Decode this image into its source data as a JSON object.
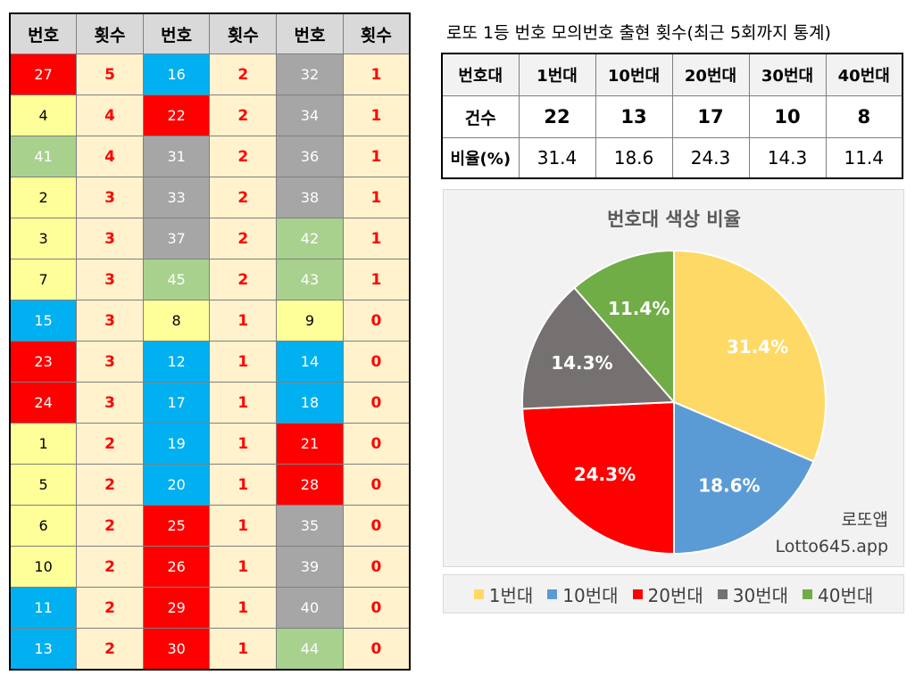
{
  "freq_table": {
    "headers": [
      "번호",
      "횟수",
      "번호",
      "횟수",
      "번호",
      "횟수"
    ],
    "rows": [
      [
        {
          "n": "27",
          "c": "5",
          "k": "r"
        },
        {
          "n": "16",
          "c": "2",
          "k": "b"
        },
        {
          "n": "32",
          "c": "1",
          "k": "g"
        }
      ],
      [
        {
          "n": "4",
          "c": "4",
          "k": "y"
        },
        {
          "n": "22",
          "c": "2",
          "k": "r"
        },
        {
          "n": "34",
          "c": "1",
          "k": "g"
        }
      ],
      [
        {
          "n": "41",
          "c": "4",
          "k": "n"
        },
        {
          "n": "31",
          "c": "2",
          "k": "g"
        },
        {
          "n": "36",
          "c": "1",
          "k": "g"
        }
      ],
      [
        {
          "n": "2",
          "c": "3",
          "k": "y"
        },
        {
          "n": "33",
          "c": "2",
          "k": "g"
        },
        {
          "n": "38",
          "c": "1",
          "k": "g"
        }
      ],
      [
        {
          "n": "3",
          "c": "3",
          "k": "y"
        },
        {
          "n": "37",
          "c": "2",
          "k": "g"
        },
        {
          "n": "42",
          "c": "1",
          "k": "n"
        }
      ],
      [
        {
          "n": "7",
          "c": "3",
          "k": "y"
        },
        {
          "n": "45",
          "c": "2",
          "k": "n"
        },
        {
          "n": "43",
          "c": "1",
          "k": "n"
        }
      ],
      [
        {
          "n": "15",
          "c": "3",
          "k": "b"
        },
        {
          "n": "8",
          "c": "1",
          "k": "y"
        },
        {
          "n": "9",
          "c": "0",
          "k": "y"
        }
      ],
      [
        {
          "n": "23",
          "c": "3",
          "k": "r"
        },
        {
          "n": "12",
          "c": "1",
          "k": "b"
        },
        {
          "n": "14",
          "c": "0",
          "k": "b"
        }
      ],
      [
        {
          "n": "24",
          "c": "3",
          "k": "r"
        },
        {
          "n": "17",
          "c": "1",
          "k": "b"
        },
        {
          "n": "18",
          "c": "0",
          "k": "b"
        }
      ],
      [
        {
          "n": "1",
          "c": "2",
          "k": "y"
        },
        {
          "n": "19",
          "c": "1",
          "k": "b"
        },
        {
          "n": "21",
          "c": "0",
          "k": "r"
        }
      ],
      [
        {
          "n": "5",
          "c": "2",
          "k": "y"
        },
        {
          "n": "20",
          "c": "1",
          "k": "b"
        },
        {
          "n": "28",
          "c": "0",
          "k": "r"
        }
      ],
      [
        {
          "n": "6",
          "c": "2",
          "k": "y"
        },
        {
          "n": "25",
          "c": "1",
          "k": "r"
        },
        {
          "n": "35",
          "c": "0",
          "k": "g"
        }
      ],
      [
        {
          "n": "10",
          "c": "2",
          "k": "y"
        },
        {
          "n": "26",
          "c": "1",
          "k": "r"
        },
        {
          "n": "39",
          "c": "0",
          "k": "g"
        }
      ],
      [
        {
          "n": "11",
          "c": "2",
          "k": "b"
        },
        {
          "n": "29",
          "c": "1",
          "k": "r"
        },
        {
          "n": "40",
          "c": "0",
          "k": "g"
        }
      ],
      [
        {
          "n": "13",
          "c": "2",
          "k": "b"
        },
        {
          "n": "30",
          "c": "1",
          "k": "r"
        },
        {
          "n": "44",
          "c": "0",
          "k": "n"
        }
      ]
    ]
  },
  "title": "로또 1등 번호 모의번호 출현 횟수(최근 5회까지 통계)",
  "band_table": {
    "corner": "번호대",
    "bands": [
      "1번대",
      "10번대",
      "20번대",
      "30번대",
      "40번대"
    ],
    "count_label": "건수",
    "counts": [
      "22",
      "13",
      "17",
      "10",
      "8"
    ],
    "ratio_label": "비율(%)",
    "ratios": [
      "31.4",
      "18.6",
      "24.3",
      "14.3",
      "11.4"
    ]
  },
  "chart_data": {
    "type": "pie",
    "title": "번호대 색상 비율",
    "categories": [
      "1번대",
      "10번대",
      "20번대",
      "30번대",
      "40번대"
    ],
    "values": [
      31.4,
      18.6,
      24.3,
      14.3,
      11.4
    ],
    "data_labels": [
      "31.4%",
      "18.6%",
      "24.3%",
      "14.3%",
      "11.4%"
    ],
    "colors": [
      "#ffd966",
      "#5b9bd5",
      "#ff0000",
      "#767171",
      "#70ad47"
    ],
    "legend_position": "bottom"
  },
  "watermark": {
    "line1": "로또앱",
    "line2": "Lotto645.app"
  },
  "colors": {
    "y": "#ffff99",
    "b": "#00b0f0",
    "r": "#ff0000",
    "g": "#a6a6a6",
    "n": "#a9d18e"
  }
}
